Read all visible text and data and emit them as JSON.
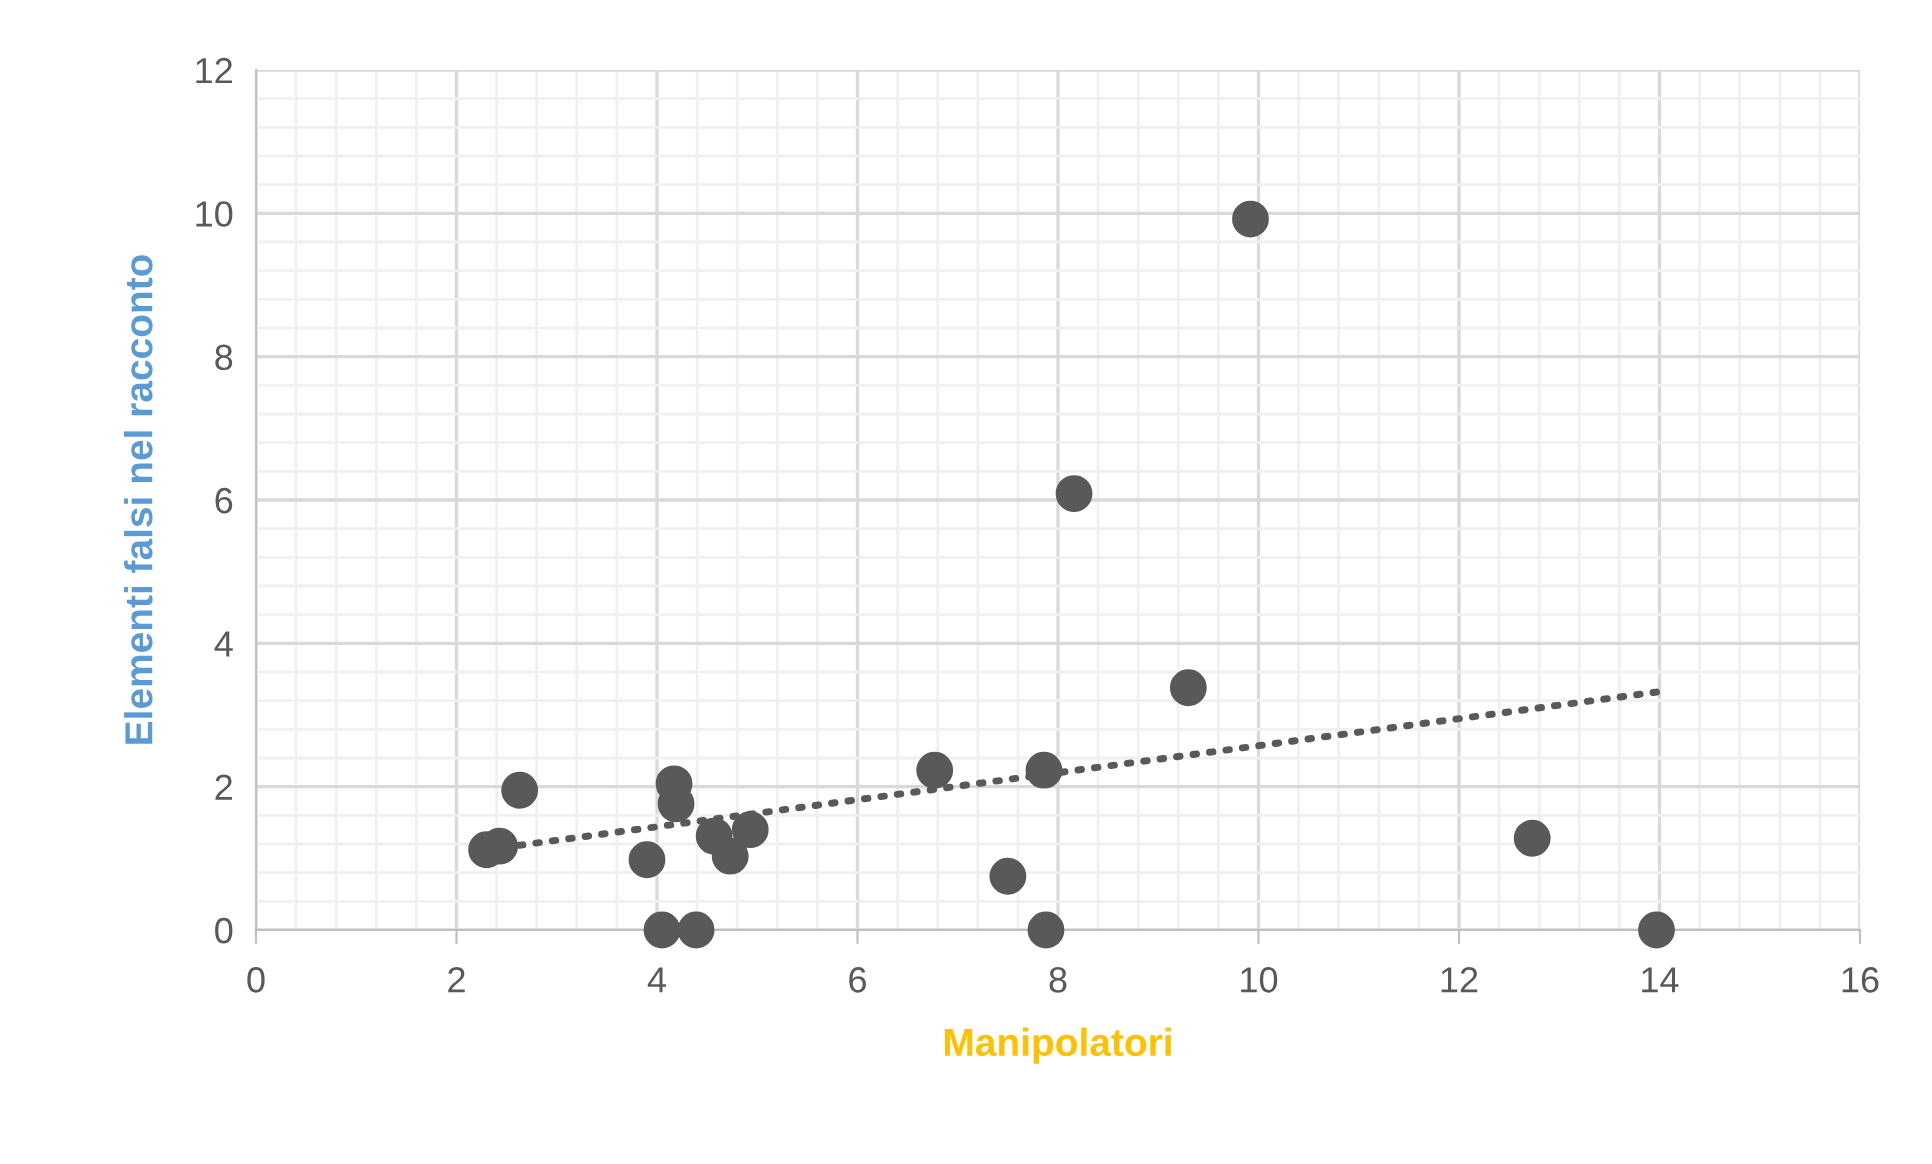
{
  "chart_data": {
    "type": "scatter",
    "xlabel": "Manipolatori",
    "ylabel": "Elementi falsi nel racconto",
    "xlim": [
      0,
      16
    ],
    "xticks": [
      0,
      2,
      4,
      6,
      8,
      10,
      12,
      14,
      16
    ],
    "ylim": [
      0,
      12
    ],
    "yticks": [
      0,
      2,
      4,
      6,
      8,
      10,
      12
    ],
    "grid": true,
    "series": [
      {
        "marker": "circle",
        "color": "#595959",
        "x": [
          2.3,
          2.43,
          2.63,
          3.9,
          4.05,
          4.17,
          4.19,
          4.39,
          4.57,
          4.73,
          4.93,
          6.77,
          7.5,
          7.86,
          7.88,
          8.16,
          9.92,
          9.3,
          12.73,
          13.97
        ],
        "values": [
          1.12,
          1.17,
          1.95,
          0.98,
          0,
          2.04,
          1.76,
          0,
          1.31,
          1.03,
          1.4,
          2.23,
          0.75,
          2.23,
          0,
          6.09,
          9.92,
          3.38,
          1.28,
          0
        ]
      },
      {
        "type": "line",
        "color": "#595959",
        "line_style": "dotted",
        "x": [
          2.3,
          13.97
        ],
        "values": [
          1.12,
          3.32
        ]
      }
    ]
  }
}
